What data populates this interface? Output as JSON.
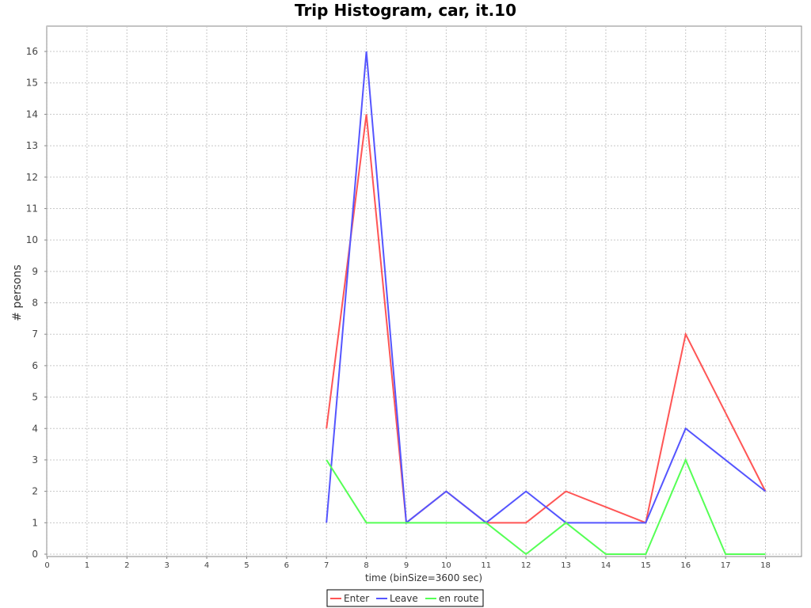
{
  "chart_data": {
    "type": "line",
    "title": "Trip Histogram, car, it.10",
    "xlabel": "time (binSize=3600 sec)",
    "ylabel": "# persons",
    "xlim": [
      0,
      19
    ],
    "ylim": [
      0,
      17
    ],
    "x_ticks": [
      0,
      1,
      2,
      3,
      4,
      5,
      6,
      7,
      8,
      9,
      10,
      11,
      12,
      13,
      14,
      15,
      16,
      17,
      18
    ],
    "y_ticks": [
      0,
      1,
      2,
      3,
      4,
      5,
      6,
      7,
      8,
      9,
      10,
      11,
      12,
      13,
      14,
      15,
      16
    ],
    "grid": true,
    "legend_position": "bottom-center",
    "x": [
      7,
      8,
      9,
      10,
      11,
      12,
      13,
      14,
      15,
      16,
      17,
      18
    ],
    "series": [
      {
        "name": "Enter",
        "color": "#ff5555",
        "values": [
          4,
          14,
          1,
          2,
          1,
          1,
          2,
          1.5,
          1,
          7,
          4.5,
          2
        ]
      },
      {
        "name": "Leave",
        "color": "#5555ff",
        "values": [
          1,
          16,
          1,
          2,
          1,
          2,
          1,
          1,
          1,
          4,
          3,
          2
        ]
      },
      {
        "name": "en route",
        "color": "#55ff55",
        "values": [
          3,
          1,
          1,
          1,
          1,
          0,
          1,
          0,
          0,
          3,
          0,
          0
        ]
      }
    ]
  }
}
